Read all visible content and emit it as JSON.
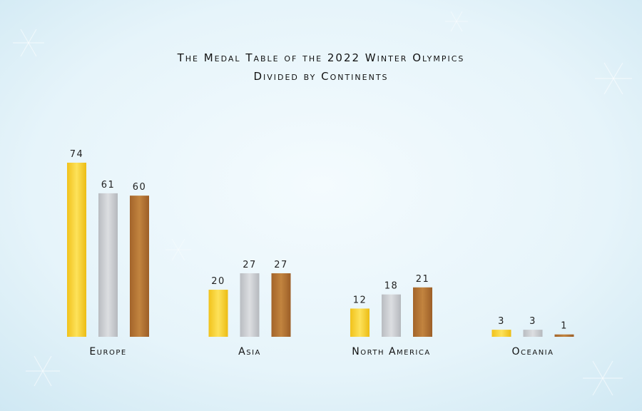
{
  "chart_data": {
    "type": "bar",
    "title": [
      "The Medal Table of the 2022 Winter Olympics",
      "Divided by Continents"
    ],
    "categories": [
      "Europe",
      "Asia",
      "North America",
      "Oceania"
    ],
    "series": [
      {
        "values": [
          74,
          20,
          12,
          3
        ],
        "color": "#f6cf2a"
      },
      {
        "values": [
          61,
          27,
          18,
          3
        ],
        "color": "#c7c9cd"
      },
      {
        "values": [
          60,
          27,
          21,
          1
        ],
        "color": "#b06f32"
      }
    ],
    "ylim": [
      0,
      74
    ],
    "grid": false,
    "legend": "none",
    "data_labels": true
  }
}
